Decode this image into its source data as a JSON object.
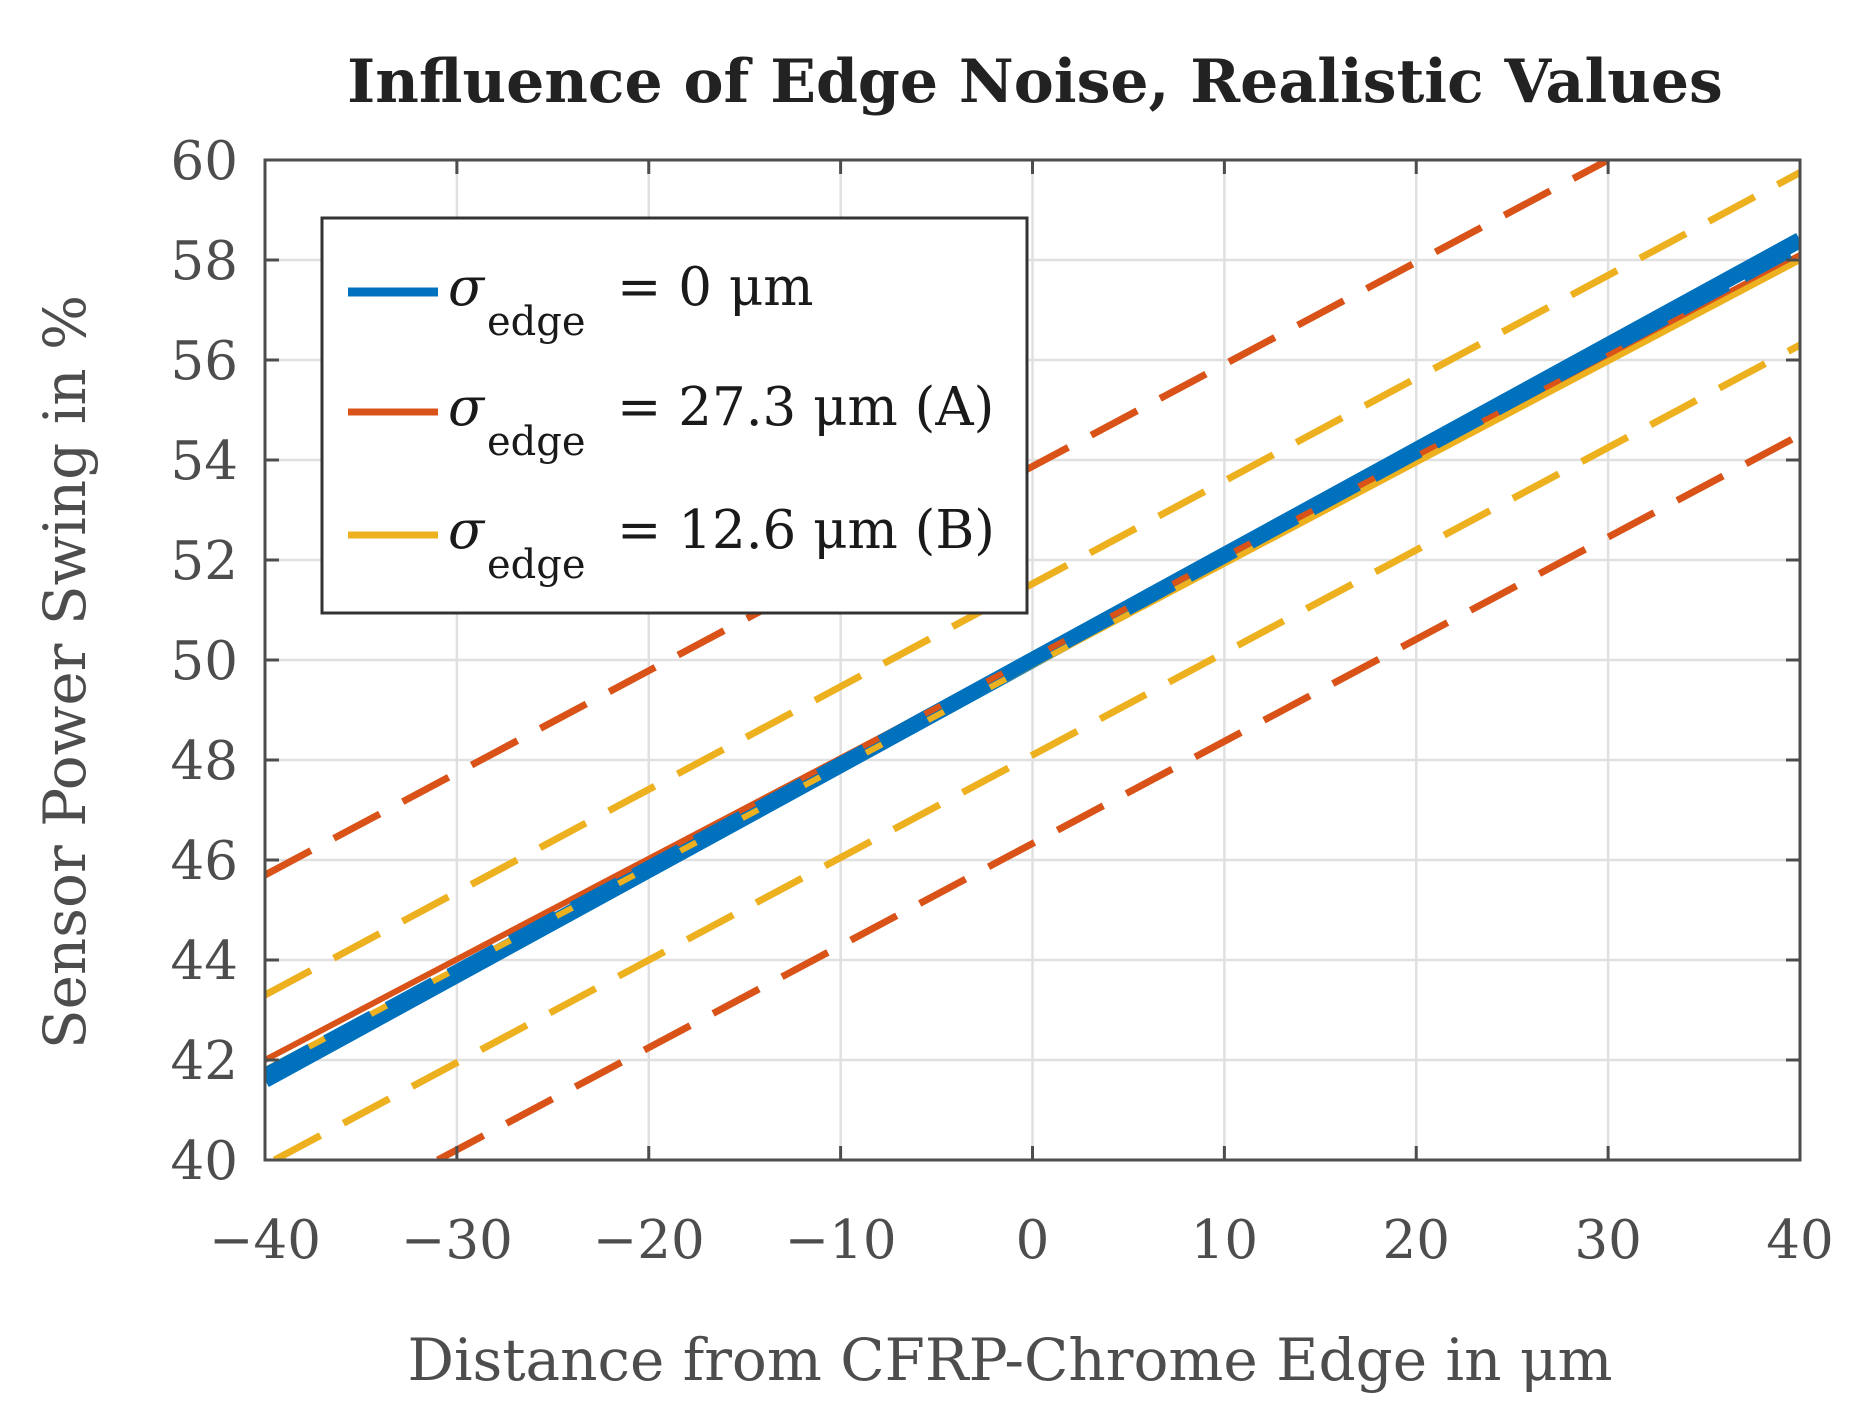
{
  "chart_data": {
    "type": "line",
    "title": "Influence of Edge Noise, Realistic Values",
    "xlabel": "Distance from CFRP-Chrome Edge in μm",
    "ylabel": "Sensor Power Swing in %",
    "xlim": [
      -40,
      40
    ],
    "ylim": [
      40,
      60
    ],
    "xticks": [
      -40,
      -30,
      -20,
      -10,
      0,
      10,
      20,
      30,
      40
    ],
    "xtick_labels": [
      "−40",
      "−30",
      "−20",
      "−10",
      "0",
      "10",
      "20",
      "30",
      "40"
    ],
    "yticks": [
      40,
      42,
      44,
      46,
      48,
      50,
      52,
      54,
      56,
      58,
      60
    ],
    "ytick_labels": [
      "40",
      "42",
      "44",
      "46",
      "48",
      "50",
      "52",
      "54",
      "56",
      "58",
      "60"
    ],
    "grid": true,
    "legend_position": "top-left",
    "colors": {
      "blue": "#0072BD",
      "red": "#D95319",
      "yellow": "#EDB120",
      "axis": "#4d4d4d",
      "grid": "#e0e0e0"
    },
    "series": [
      {
        "name": "σedge = 0 μm",
        "legend": {
          "symbol": "σ",
          "sub": "edge",
          "text": "= 0 μm"
        },
        "color": "#0072BD",
        "style": "solid",
        "x": [
          -40,
          40
        ],
        "y": [
          41.6,
          58.4
        ]
      },
      {
        "name": "σedge = 27.3 μm (A)",
        "legend": {
          "symbol": "σ",
          "sub": "edge",
          "text": "= 27.3 μm (A)"
        },
        "color": "#D95319",
        "style": "solid",
        "x": [
          -40,
          40
        ],
        "y": [
          42.0,
          58.1
        ]
      },
      {
        "name": "σedge = 12.6 μm (B)",
        "legend": {
          "symbol": "σ",
          "sub": "edge",
          "text": "= 12.6 μm (B)"
        },
        "color": "#EDB120",
        "style": "solid",
        "x": [
          -40,
          40
        ],
        "y": [
          41.8,
          58.0
        ]
      },
      {
        "color": "#0072BD",
        "style": "dashed",
        "x": [
          -40,
          40
        ],
        "y": [
          41.7,
          58.3
        ]
      },
      {
        "color": "#D95319",
        "style": "dashed",
        "x": [
          -40,
          30
        ],
        "y": [
          45.7,
          60.0
        ]
      },
      {
        "color": "#D95319",
        "style": "dashed",
        "x": [
          -31,
          40
        ],
        "y": [
          40.0,
          54.5
        ]
      },
      {
        "color": "#EDB120",
        "style": "dashed",
        "x": [
          -40,
          40
        ],
        "y": [
          43.3,
          59.75
        ]
      },
      {
        "color": "#EDB120",
        "style": "dashed",
        "x": [
          -39.5,
          40
        ],
        "y": [
          40.0,
          56.3
        ]
      }
    ]
  }
}
